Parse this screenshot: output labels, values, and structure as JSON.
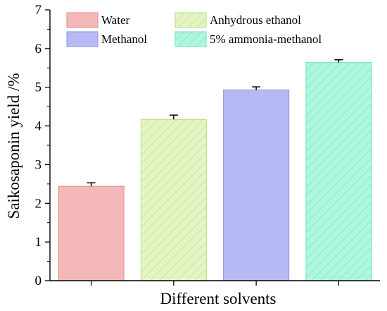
{
  "chart_data": {
    "type": "bar",
    "title": "",
    "xlabel": "Different solvents",
    "ylabel": "Saikosaponin yield /%",
    "ylim": [
      0,
      7
    ],
    "yticks": [
      "0",
      "1",
      "2",
      "3",
      "4",
      "5",
      "6",
      "7"
    ],
    "grid": false,
    "legend_position": "top",
    "series": [
      {
        "name": "Water",
        "value": 2.44,
        "error": 0.09,
        "color": "#f4b8b8",
        "edge": "#e08a8a",
        "pattern": "none"
      },
      {
        "name": "Anhydrous ethanol",
        "value": 4.17,
        "error": 0.11,
        "color": "#e3f5c2",
        "edge": "#b7dc86",
        "pattern": "hatch"
      },
      {
        "name": "Methanol",
        "value": 4.93,
        "error": 0.08,
        "color": "#b7b9f5",
        "edge": "#8c8fe6",
        "pattern": "none"
      },
      {
        "name": "5% ammonia-methanol",
        "value": 5.64,
        "error": 0.07,
        "color": "#aef7dd",
        "edge": "#6fe2bf",
        "pattern": "hatch"
      }
    ]
  }
}
